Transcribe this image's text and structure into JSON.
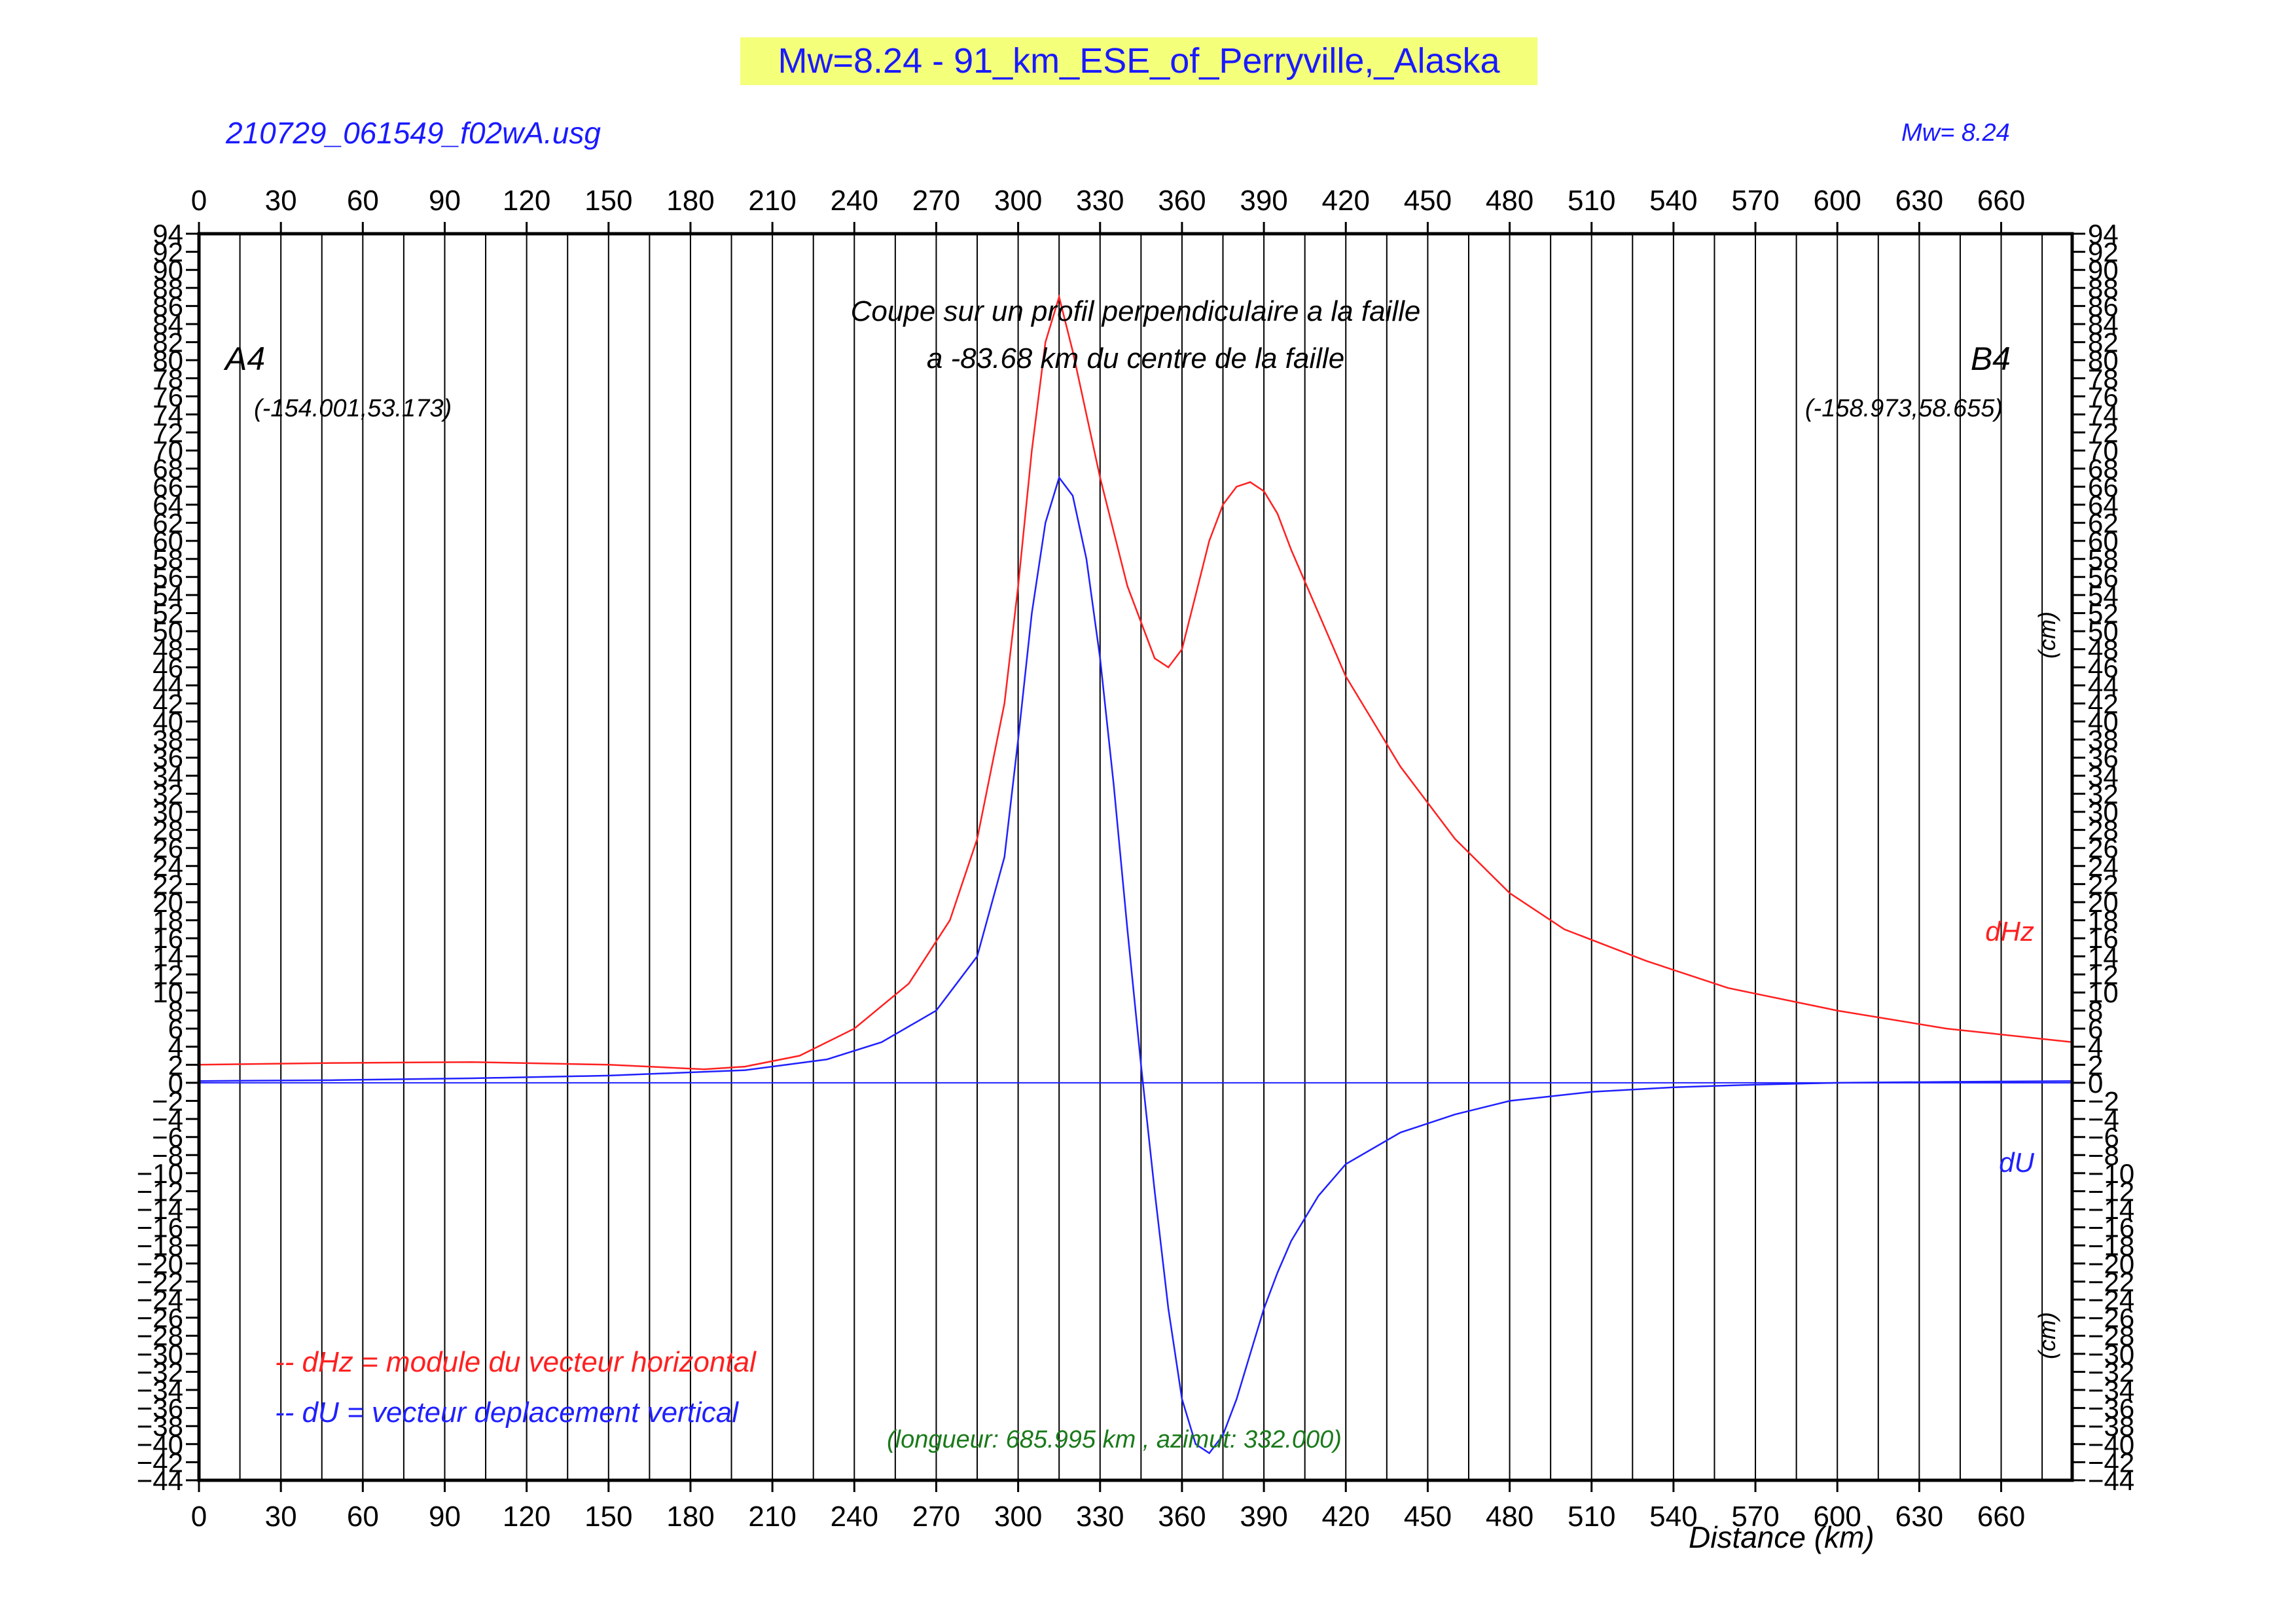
{
  "title": "Mw=8.24 - 91_km_ESE_of_Perryville,_Alaska",
  "file_label": "210729_061549_f02wA.usg",
  "mw_label": "Mw= 8.24",
  "colors": {
    "title_bg": "#f4ff7a",
    "title_text": "#1a1aff",
    "dhz": "#ff2020",
    "du": "#2020ff",
    "annot": "#1a7a1a",
    "axis": "#000000"
  },
  "chart_data": {
    "type": "line",
    "subtitle_lines": [
      "Coupe sur un profil perpendiculaire a la faille",
      "a -83.68 km du centre de la faille"
    ],
    "endpoint_a": {
      "name": "A4",
      "coords": "(-154.001,53.173)"
    },
    "endpoint_b": {
      "name": "B4",
      "coords": "(-158.973,58.655)"
    },
    "xlabel": "Distance (km)",
    "unit_label": "(cm)",
    "xlim": [
      0,
      686
    ],
    "ylim": [
      -44,
      94
    ],
    "x_ticks": [
      0,
      30,
      60,
      90,
      120,
      150,
      180,
      210,
      240,
      270,
      300,
      330,
      360,
      390,
      420,
      450,
      480,
      510,
      540,
      570,
      600,
      630,
      660
    ],
    "y_tick_step": 2,
    "vertical_grid_step_km": 15,
    "zero_line": true,
    "legend": [
      {
        "text": "-- dHz = module du vecteur horizontal",
        "color": "#ff2020"
      },
      {
        "text": "-- dU =  vecteur deplacement vertical",
        "color": "#2020ff"
      }
    ],
    "legend_position": "bottom-left",
    "series": [
      {
        "name": "dHz",
        "color": "#ff2020",
        "x": [
          0,
          50,
          100,
          150,
          185,
          200,
          220,
          240,
          260,
          275,
          285,
          295,
          300,
          305,
          310,
          315,
          320,
          330,
          340,
          350,
          355,
          360,
          365,
          370,
          375,
          380,
          385,
          390,
          395,
          400,
          410,
          420,
          440,
          460,
          480,
          500,
          530,
          560,
          600,
          640,
          686
        ],
        "y": [
          2,
          2.2,
          2.3,
          2.0,
          1.5,
          1.8,
          3.0,
          6.0,
          11.0,
          18.0,
          27.0,
          42.0,
          55.0,
          70.0,
          82.0,
          87.0,
          81.0,
          67.0,
          55.0,
          47.0,
          46.0,
          48.0,
          54.0,
          60.0,
          64.0,
          66.0,
          66.5,
          65.5,
          63.0,
          59.0,
          52.0,
          45.0,
          35.0,
          27.0,
          21.0,
          17.0,
          13.5,
          10.5,
          8.0,
          6.0,
          4.5
        ]
      },
      {
        "name": "dU",
        "color": "#2020ff",
        "x": [
          0,
          50,
          100,
          150,
          200,
          230,
          250,
          270,
          285,
          295,
          300,
          305,
          310,
          315,
          320,
          325,
          330,
          335,
          340,
          345,
          350,
          355,
          360,
          365,
          370,
          375,
          380,
          385,
          390,
          395,
          400,
          410,
          420,
          440,
          460,
          480,
          510,
          540,
          570,
          600,
          640,
          686
        ],
        "y": [
          0.2,
          0.3,
          0.5,
          0.8,
          1.4,
          2.6,
          4.5,
          8.0,
          14.0,
          25.0,
          38.0,
          52.0,
          62.0,
          67.0,
          65.0,
          58.0,
          47.0,
          33.0,
          17.0,
          2.0,
          -12.0,
          -25.0,
          -35.0,
          -40.0,
          -41.0,
          -39.0,
          -35.0,
          -30.0,
          -25.0,
          -21.0,
          -17.5,
          -12.5,
          -9.0,
          -5.5,
          -3.5,
          -2.0,
          -1.0,
          -0.5,
          -0.2,
          0.0,
          0.1,
          0.2
        ]
      }
    ],
    "annotations": [
      {
        "text": "(longueur: 685.995 km , azimut: 332.000)",
        "color": "#1a7a1a"
      }
    ]
  }
}
